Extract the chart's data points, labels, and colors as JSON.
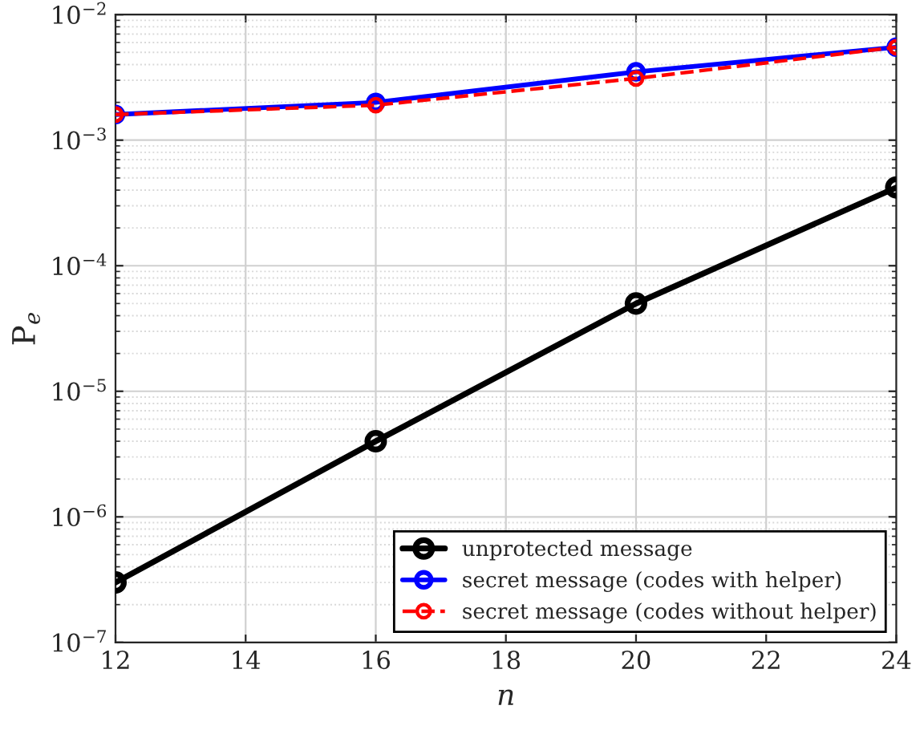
{
  "chart_data": {
    "type": "line",
    "xlabel": "n",
    "ylabel": "P$_{e}$",
    "x": [
      12,
      16,
      20,
      24
    ],
    "series": [
      {
        "name": "unprotected message",
        "color": "#000000",
        "values": [
          3e-07,
          4e-06,
          5e-05,
          0.00042
        ],
        "line_style": "solid"
      },
      {
        "name": "secret message (codes with helper)",
        "color": "#0000ff",
        "values": [
          0.0016,
          0.002,
          0.0035,
          0.0055
        ],
        "line_style": "solid"
      },
      {
        "name": "secret message (codes without helper)",
        "color": "#ff0000",
        "values": [
          0.0016,
          0.0019,
          0.0031,
          0.0055
        ],
        "line_style": "dashed"
      }
    ],
    "log": "y",
    "xlim": [
      12,
      24
    ],
    "xticks": [
      12,
      14,
      16,
      18,
      20,
      22,
      24
    ],
    "ylim": [
      1e-07,
      0.01
    ],
    "yticks": [
      {
        "value": 1e-07,
        "label": "10$^{−7}$"
      },
      {
        "value": 1e-06,
        "label": "10$^{−6}$"
      },
      {
        "value": 1e-05,
        "label": "10$^{−5}$"
      },
      {
        "value": 0.0001,
        "label": "10$^{−4}$"
      },
      {
        "value": 0.001,
        "label": "10$^{−3}$"
      },
      {
        "value": 0.01,
        "label": "10$^{−2}$"
      }
    ],
    "grid": true,
    "legend": "bottom right",
    "marker": "circle"
  }
}
